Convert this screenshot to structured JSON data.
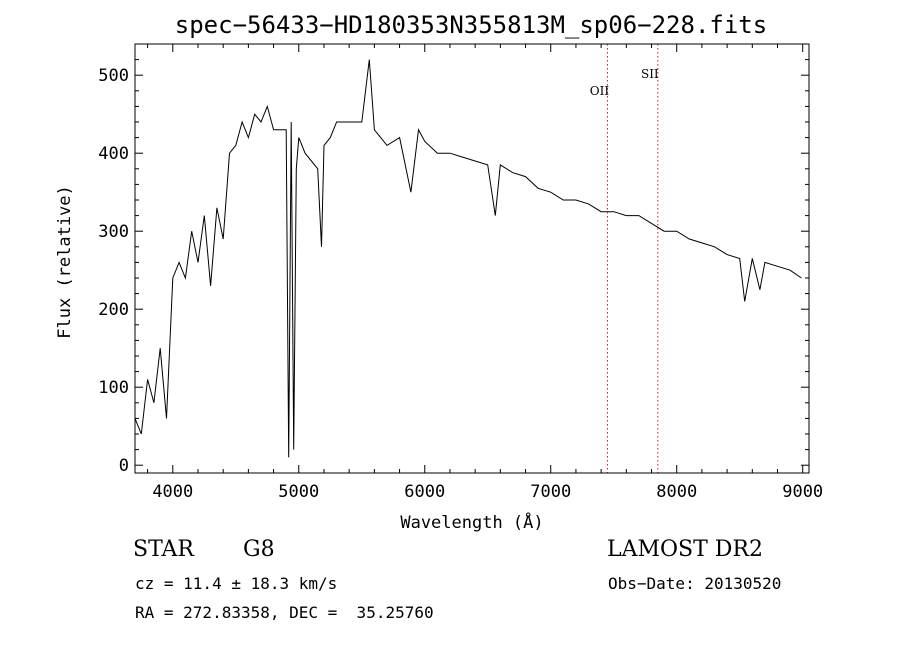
{
  "chart_data": {
    "type": "line",
    "title": "spec−56433−HD180353N355813M_sp06−228.fits",
    "xlabel": "Wavelength (Å)",
    "ylabel": "Flux (relative)",
    "xlim": [
      3700,
      9050
    ],
    "ylim": [
      -10,
      540
    ],
    "x_ticks": [
      4000,
      5000,
      6000,
      7000,
      8000,
      9000
    ],
    "y_ticks": [
      0,
      100,
      200,
      300,
      400,
      500
    ],
    "grid": false,
    "legend": "none",
    "line_color": "#000000",
    "series": [
      {
        "x": [
          3700,
          3750,
          3800,
          3850,
          3900,
          3950,
          4000,
          4050,
          4100,
          4150,
          4200,
          4250,
          4300,
          4350,
          4400,
          4450,
          4500,
          4550,
          4600,
          4650,
          4700,
          4750,
          4800,
          4850,
          4900,
          4920,
          4940,
          4960,
          4980,
          5000,
          5050,
          5100,
          5150,
          5180,
          5200,
          5250,
          5300,
          5400,
          5500,
          5560,
          5600,
          5700,
          5800,
          5890,
          5950,
          6000,
          6100,
          6200,
          6300,
          6400,
          6500,
          6560,
          6600,
          6700,
          6800,
          6900,
          7000,
          7100,
          7200,
          7300,
          7400,
          7500,
          7600,
          7700,
          7800,
          7900,
          8000,
          8100,
          8200,
          8300,
          8400,
          8500,
          8540,
          8600,
          8660,
          8700,
          8800,
          8900,
          8990
        ],
        "y": [
          60,
          40,
          110,
          80,
          150,
          60,
          240,
          260,
          240,
          300,
          260,
          320,
          230,
          330,
          290,
          400,
          410,
          440,
          420,
          450,
          440,
          460,
          430,
          430,
          430,
          10,
          440,
          20,
          380,
          420,
          400,
          390,
          380,
          280,
          410,
          420,
          440,
          440,
          440,
          520,
          430,
          410,
          420,
          350,
          430,
          415,
          400,
          400,
          395,
          390,
          385,
          320,
          385,
          375,
          370,
          355,
          350,
          340,
          340,
          335,
          325,
          325,
          320,
          320,
          310,
          300,
          300,
          290,
          285,
          280,
          270,
          265,
          210,
          265,
          225,
          260,
          255,
          250,
          240
        ]
      }
    ],
    "annotations": [
      {
        "text": "OII",
        "x": 7450,
        "style": "dotted",
        "color": "#b22222"
      },
      {
        "text": "SII",
        "x": 7850,
        "style": "dotted",
        "color": "#b22222"
      }
    ]
  },
  "info": {
    "class": "STAR",
    "subclass": "G8",
    "cz": "cz = 11.4 ± 18.3 km/s",
    "coords": "RA = 272.83358, DEC =  35.25760",
    "survey": "LAMOST DR2",
    "obs_date": "Obs−Date: 20130520"
  }
}
